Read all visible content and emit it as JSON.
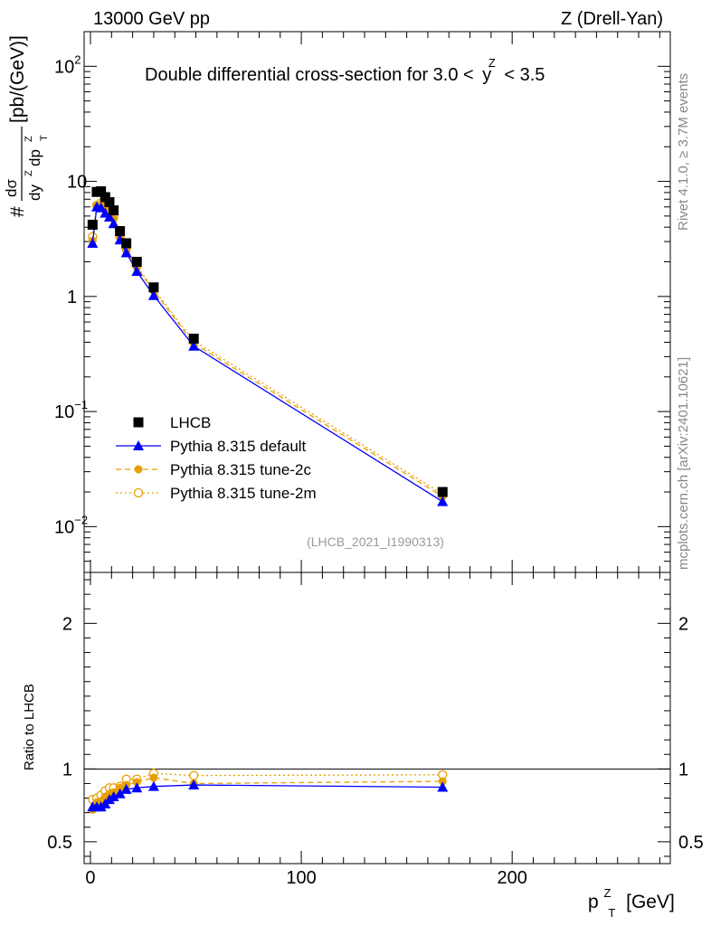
{
  "header": {
    "left": "13000 GeV pp",
    "right": "Z (Drell-Yan)"
  },
  "side": {
    "rivet": "Rivet 4.1.0, ≥ 3.7M events",
    "mcplots": "mcplots.cern.ch [arXiv:2401.10621]"
  },
  "colors": {
    "data": "#000000",
    "default": "#0000ff",
    "tune2c": "#e69f00",
    "tune2m": "#e69f00"
  },
  "chart_data": [
    {
      "type": "scatter",
      "title": "Double differential cross-section for 3.0 < y^Z < 3.5",
      "title_main": "Double differential cross-section for 3.0 <",
      "title_var": "y",
      "title_sup": "Z",
      "title_end": "< 3.5",
      "yscale": "log",
      "ylim": [
        0.004,
        200
      ],
      "xlim": [
        -3,
        275
      ],
      "ylabel": "# dσ/dy^Z dp_T^Z [pb/(GeV)]",
      "ylabel_parts": {
        "hash": "#",
        "num": "dσ",
        "den_a": "dy",
        "den_b": "dp",
        "unit": "[pb/(GeV)]",
        "sup_z": "Z",
        "sub_t": "T"
      },
      "yticks": [
        {
          "value": 0.01,
          "base": "10",
          "exp": "−2"
        },
        {
          "value": 0.1,
          "base": "10",
          "exp": "−1"
        },
        {
          "value": 1,
          "base": "1",
          "exp": ""
        },
        {
          "value": 10,
          "base": "10",
          "exp": ""
        },
        {
          "value": 100,
          "base": "10",
          "exp": "2"
        }
      ],
      "reference": "(LHCB_2021_I1990313)",
      "legend_position": "lower-left",
      "x": [
        1,
        3,
        5,
        7,
        9,
        11,
        14,
        17,
        22,
        30,
        49,
        167
      ],
      "series": [
        {
          "name": "LHCB",
          "key": "data",
          "marker": "square",
          "line": "none",
          "values": [
            4.2,
            8.1,
            8.2,
            7.3,
            6.6,
            5.6,
            3.7,
            2.9,
            2.0,
            1.2,
            0.43,
            0.02
          ]
        },
        {
          "name": "Pythia 8.315 default",
          "key": "default",
          "marker": "triangle",
          "line": "solid",
          "values": [
            2.9,
            6.0,
            5.9,
            5.3,
            4.9,
            4.3,
            3.1,
            2.4,
            1.65,
            1.02,
            0.37,
            0.0165
          ]
        },
        {
          "name": "Pythia 8.315 tune-2c",
          "key": "tune2c",
          "marker": "circle",
          "line": "dashed",
          "values": [
            3.05,
            6.1,
            6.3,
            5.9,
            5.5,
            4.7,
            3.3,
            2.5,
            1.78,
            1.12,
            0.39,
            0.0183
          ]
        },
        {
          "name": "Pythia 8.315 tune-2m",
          "key": "tune2m",
          "marker": "open-circle",
          "line": "dotted",
          "values": [
            3.3,
            6.2,
            6.5,
            6.1,
            5.8,
            4.9,
            3.3,
            2.6,
            1.84,
            1.15,
            0.41,
            0.0192
          ]
        }
      ]
    },
    {
      "type": "line",
      "ylabel": "Ratio to LHCB",
      "xlabel": "p_T^Z [GeV]",
      "xlabel_parts": {
        "p": "p",
        "sup": "Z",
        "sub": "T",
        "unit": "[GeV]"
      },
      "ylim": [
        0.35,
        2.35
      ],
      "xlim": [
        -3,
        275
      ],
      "yticks": [
        0.5,
        1,
        2
      ],
      "ytick_labels": [
        "0.5",
        "1",
        "2"
      ],
      "xticks": [
        0,
        100,
        200
      ],
      "xtick_labels": [
        "0",
        "100",
        "200"
      ],
      "x": [
        1,
        3,
        5,
        7,
        9,
        11,
        14,
        17,
        22,
        30,
        49,
        167
      ],
      "series": [
        {
          "name": "Pythia 8.315 default",
          "key": "default",
          "marker": "triangle",
          "line": "solid",
          "values": [
            0.74,
            0.74,
            0.74,
            0.76,
            0.79,
            0.81,
            0.83,
            0.86,
            0.87,
            0.88,
            0.89,
            0.875
          ]
        },
        {
          "name": "Pythia 8.315 tune-2c",
          "key": "tune2c",
          "marker": "circle",
          "line": "dashed",
          "values": [
            0.72,
            0.77,
            0.78,
            0.81,
            0.83,
            0.84,
            0.87,
            0.89,
            0.91,
            0.94,
            0.9,
            0.915
          ]
        },
        {
          "name": "Pythia 8.315 tune-2m",
          "key": "tune2m",
          "marker": "open-circle",
          "line": "dotted",
          "values": [
            0.79,
            0.8,
            0.82,
            0.85,
            0.87,
            0.87,
            0.88,
            0.93,
            0.93,
            0.97,
            0.955,
            0.96
          ]
        }
      ]
    }
  ]
}
